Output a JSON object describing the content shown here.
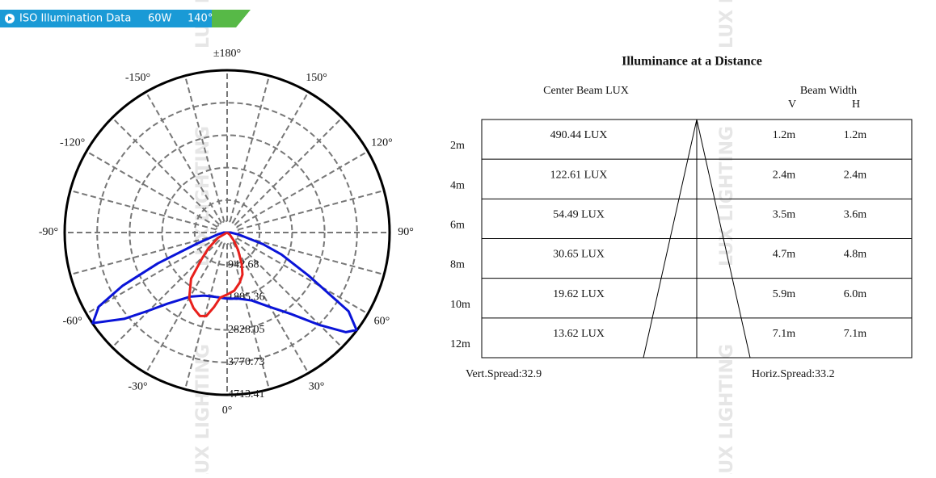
{
  "header": {
    "title": "ISO Illumination Data",
    "power": "60W",
    "angle": "140°"
  },
  "watermark": "LUX LIGHTING",
  "chart_data": {
    "type": "polar",
    "rlim": [
      0,
      4713.41
    ],
    "rticks": [
      942.68,
      1885.36,
      2828.05,
      3770.73,
      4713.41
    ],
    "angle_ticks": [
      {
        "value": 180,
        "label": "±180°"
      },
      {
        "value": -150,
        "label": "-150°"
      },
      {
        "value": 150,
        "label": "150°"
      },
      {
        "value": -120,
        "label": "-120°"
      },
      {
        "value": 120,
        "label": "120°"
      },
      {
        "value": -90,
        "label": "-90°"
      },
      {
        "value": 90,
        "label": "90°"
      },
      {
        "value": -60,
        "label": "-60°"
      },
      {
        "value": 60,
        "label": "60°"
      },
      {
        "value": -30,
        "label": "-30°"
      },
      {
        "value": 30,
        "label": "30°"
      },
      {
        "value": 0,
        "label": "0°"
      }
    ],
    "grid": true,
    "series": [
      {
        "color": "#0a14d8",
        "theta": [
          -90,
          -80,
          -70,
          -66,
          -63,
          -60,
          -56,
          -50,
          -45,
          -40,
          -30,
          -20,
          -10,
          0,
          10,
          20,
          30,
          38,
          45,
          50,
          53,
          57,
          62,
          68,
          72,
          80,
          90
        ],
        "values": [
          100,
          250,
          900,
          2200,
          3400,
          4300,
          4700,
          3900,
          3200,
          2700,
          2150,
          1950,
          1900,
          1920,
          1950,
          2100,
          2500,
          3000,
          3800,
          4500,
          4700,
          4200,
          2700,
          1700,
          1100,
          350,
          100
        ]
      },
      {
        "color": "#e8201c",
        "theta": [
          -60,
          -50,
          -44,
          -38,
          -30,
          -24,
          -18,
          -14,
          -10,
          -6,
          0,
          7,
          14,
          20,
          25,
          32,
          40,
          50
        ],
        "values": [
          300,
          700,
          1050,
          1700,
          2200,
          2400,
          2550,
          2500,
          2200,
          1900,
          1800,
          1700,
          1500,
          1300,
          1000,
          600,
          300,
          100
        ]
      }
    ]
  },
  "table": {
    "title": "Illuminance at a Distance",
    "lux_header": "Center Beam LUX",
    "width_header": "Beam Width",
    "v_header": "V",
    "h_header": "H",
    "rows": [
      [
        "2m",
        "490.44 LUX",
        "1.2m",
        "1.2m"
      ],
      [
        "4m",
        "122.61 LUX",
        "2.4m",
        "2.4m"
      ],
      [
        "6m",
        "54.49 LUX",
        "3.5m",
        "3.6m"
      ],
      [
        "8m",
        "30.65 LUX",
        "4.7m",
        "4.8m"
      ],
      [
        "10m",
        "19.62 LUX",
        "5.9m",
        "6.0m"
      ],
      [
        "12m",
        "13.62 LUX",
        "7.1m",
        "7.1m"
      ]
    ],
    "vert_spread": "Vert.Spread:32.9",
    "horiz_spread": "Horiz.Spread:33.2"
  }
}
